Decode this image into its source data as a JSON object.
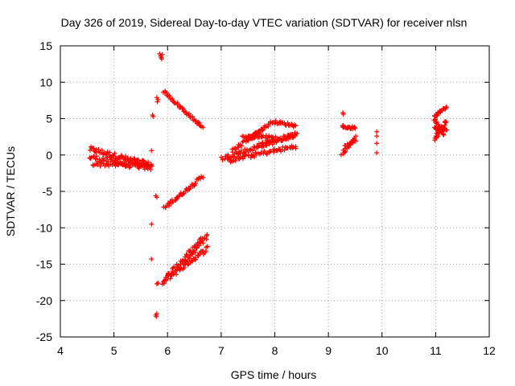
{
  "chart_data": {
    "type": "scatter",
    "title": "Day 326 of 2019, Sidereal Day-to-day VTEC variation (SDTVAR) for receiver nlsn",
    "xlabel": "GPS time / hours",
    "ylabel": "SDTVAR / TECUs",
    "xlim": [
      4,
      12
    ],
    "ylim": [
      -25,
      15
    ],
    "xticks": [
      "4",
      "5",
      "6",
      "7",
      "8",
      "9",
      "10",
      "11",
      "12"
    ],
    "yticks": [
      "-25",
      "-20",
      "-15",
      "-10",
      "-5",
      "0",
      "5",
      "10",
      "15"
    ],
    "grid": true,
    "marker": "+",
    "color": "#ff0000",
    "segments": [
      {
        "x0": 4.55,
        "y0": 0.8,
        "x1": 5.7,
        "y1": -1.4,
        "n": 70,
        "jitter": 0.35
      },
      {
        "x0": 4.55,
        "y0": -0.3,
        "x1": 5.7,
        "y1": -1.8,
        "n": 60,
        "jitter": 0.4
      },
      {
        "x0": 4.6,
        "y0": -1.2,
        "x1": 5.6,
        "y1": -1.5,
        "n": 40,
        "jitter": 0.3
      },
      {
        "x0": 5.92,
        "y0": 8.8,
        "x1": 6.65,
        "y1": 3.8,
        "n": 45,
        "jitter": 0.2
      },
      {
        "x0": 5.93,
        "y0": -7.3,
        "x1": 6.65,
        "y1": -3.0,
        "n": 45,
        "jitter": 0.25
      },
      {
        "x0": 5.9,
        "y0": -17.5,
        "x1": 6.65,
        "y1": -11.5,
        "n": 50,
        "jitter": 0.4
      },
      {
        "x0": 5.95,
        "y0": -17.2,
        "x1": 6.75,
        "y1": -12.8,
        "n": 45,
        "jitter": 0.35
      },
      {
        "x0": 6.3,
        "y0": -15.0,
        "x1": 6.75,
        "y1": -11.0,
        "n": 25,
        "jitter": 0.3
      },
      {
        "x0": 7.0,
        "y0": -0.5,
        "x1": 8.4,
        "y1": 2.8,
        "n": 70,
        "jitter": 0.3
      },
      {
        "x0": 7.1,
        "y0": -0.8,
        "x1": 8.4,
        "y1": 1.2,
        "n": 60,
        "jitter": 0.3
      },
      {
        "x0": 7.2,
        "y0": 0.5,
        "x1": 7.75,
        "y1": 3.4,
        "n": 30,
        "jitter": 0.3
      },
      {
        "x0": 7.4,
        "y0": 2.5,
        "x1": 8.0,
        "y1": 2.5,
        "n": 30,
        "jitter": 0.2
      },
      {
        "x0": 7.5,
        "y0": 2.2,
        "x1": 7.95,
        "y1": 4.5,
        "n": 25,
        "jitter": 0.2
      },
      {
        "x0": 7.95,
        "y0": 4.6,
        "x1": 8.4,
        "y1": 4.0,
        "n": 25,
        "jitter": 0.2
      },
      {
        "x0": 7.7,
        "y0": 1.4,
        "x1": 8.4,
        "y1": 2.8,
        "n": 35,
        "jitter": 0.3
      },
      {
        "x0": 9.25,
        "y0": 3.9,
        "x1": 9.5,
        "y1": 3.7,
        "n": 18,
        "jitter": 0.2
      },
      {
        "x0": 9.25,
        "y0": 0.2,
        "x1": 9.5,
        "y1": 2.4,
        "n": 18,
        "jitter": 0.25
      },
      {
        "x0": 9.3,
        "y0": 1.2,
        "x1": 9.5,
        "y1": 2.0,
        "n": 10,
        "jitter": 0.2
      },
      {
        "x0": 10.97,
        "y0": 5.3,
        "x1": 11.2,
        "y1": 6.6,
        "n": 22,
        "jitter": 0.2
      },
      {
        "x0": 10.97,
        "y0": 3.6,
        "x1": 11.2,
        "y1": 3.5,
        "n": 22,
        "jitter": 0.25
      },
      {
        "x0": 10.97,
        "y0": 2.3,
        "x1": 11.2,
        "y1": 4.6,
        "n": 22,
        "jitter": 0.25
      },
      {
        "x0": 11.0,
        "y0": 4.8,
        "x1": 11.15,
        "y1": 2.8,
        "n": 15,
        "jitter": 0.2
      }
    ],
    "points": [
      [
        5.85,
        13.9
      ],
      [
        5.87,
        13.6
      ],
      [
        5.89,
        13.2
      ],
      [
        5.9,
        13.8
      ],
      [
        5.88,
        13.4
      ],
      [
        5.72,
        5.5
      ],
      [
        5.73,
        5.3
      ],
      [
        5.8,
        7.9
      ],
      [
        5.82,
        7.6
      ],
      [
        5.81,
        7.3
      ],
      [
        5.7,
        0.6
      ],
      [
        5.7,
        -9.5
      ],
      [
        5.7,
        -14.3
      ],
      [
        5.78,
        -5.6
      ],
      [
        5.8,
        -5.8
      ],
      [
        5.82,
        -17.6
      ],
      [
        5.8,
        -17.7
      ],
      [
        5.78,
        -22.0
      ],
      [
        5.8,
        -21.8
      ],
      [
        5.79,
        -22.2
      ],
      [
        9.27,
        5.8
      ],
      [
        9.28,
        5.6
      ],
      [
        9.9,
        3.2
      ],
      [
        9.9,
        2.6
      ],
      [
        9.9,
        1.6
      ],
      [
        9.9,
        0.3
      ],
      [
        10.97,
        4.8
      ],
      [
        11.0,
        4.6
      ],
      [
        11.05,
        2.6
      ],
      [
        11.02,
        2.4
      ]
    ]
  }
}
